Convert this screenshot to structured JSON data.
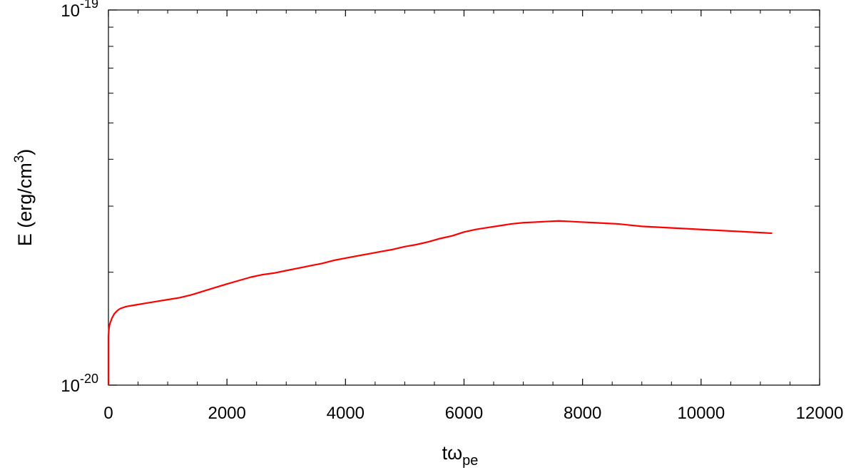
{
  "chart_data": {
    "type": "line",
    "xlabel": {
      "base": "tω",
      "sub": "pe"
    },
    "ylabel": {
      "base": "E (erg/cm",
      "sup": "3",
      "tail": ")"
    },
    "xlim": [
      0,
      12000
    ],
    "ylim": [
      1e-20,
      1e-19
    ],
    "yscale": "log",
    "grid": false,
    "x_ticks": [
      "0",
      "2000",
      "4000",
      "6000",
      "8000",
      "10000",
      "12000"
    ],
    "y_ticks": [
      {
        "base": "10",
        "exp": "-20"
      },
      {
        "base": "10",
        "exp": "-19"
      }
    ],
    "series": [
      {
        "color": "#ff0000",
        "x": [
          0,
          0,
          10,
          20,
          40,
          60,
          100,
          150,
          200,
          300,
          400,
          500,
          600,
          800,
          1000,
          1200,
          1400,
          1600,
          1800,
          2000,
          2200,
          2400,
          2600,
          2800,
          3000,
          3200,
          3400,
          3600,
          3800,
          4000,
          4200,
          4400,
          4600,
          4800,
          5000,
          5200,
          5400,
          5600,
          5800,
          6000,
          6200,
          6400,
          6600,
          6800,
          7000,
          7200,
          7400,
          7600,
          7800,
          8000,
          8200,
          8400,
          8600,
          8800,
          9000,
          9200,
          9400,
          9600,
          9800,
          10000,
          10200,
          10400,
          10600,
          10800,
          11000,
          11200
        ],
        "y": [
          1e-20,
          1.35e-20,
          1.42e-20,
          1.45e-20,
          1.48e-20,
          1.51e-20,
          1.55e-20,
          1.58e-20,
          1.6e-20,
          1.62e-20,
          1.63e-20,
          1.64e-20,
          1.65e-20,
          1.67e-20,
          1.69e-20,
          1.71e-20,
          1.74e-20,
          1.78e-20,
          1.82e-20,
          1.86e-20,
          1.9e-20,
          1.94e-20,
          1.97e-20,
          1.99e-20,
          2.02e-20,
          2.05e-20,
          2.08e-20,
          2.11e-20,
          2.15e-20,
          2.18e-20,
          2.21e-20,
          2.24e-20,
          2.27e-20,
          2.3e-20,
          2.34e-20,
          2.37e-20,
          2.41e-20,
          2.46e-20,
          2.5e-20,
          2.56e-20,
          2.6e-20,
          2.63e-20,
          2.66e-20,
          2.69e-20,
          2.71e-20,
          2.72e-20,
          2.73e-20,
          2.74e-20,
          2.73e-20,
          2.72e-20,
          2.71e-20,
          2.7e-20,
          2.69e-20,
          2.67e-20,
          2.65e-20,
          2.64e-20,
          2.63e-20,
          2.62e-20,
          2.61e-20,
          2.6e-20,
          2.59e-20,
          2.58e-20,
          2.57e-20,
          2.56e-20,
          2.55e-20,
          2.54e-20
        ]
      }
    ]
  }
}
